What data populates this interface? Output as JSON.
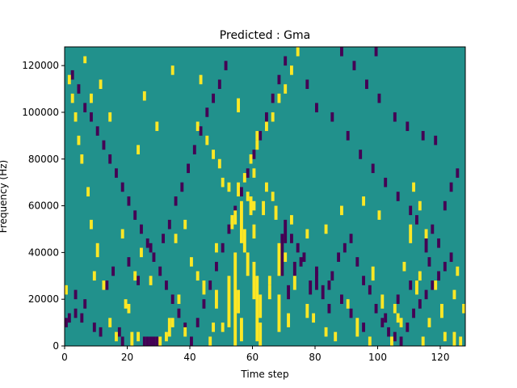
{
  "chart_data": {
    "type": "heatmap",
    "title": "Predicted : Gma",
    "xlabel": "Time step",
    "ylabel": "Frequency (Hz)",
    "xlim": [
      0,
      128
    ],
    "ylim": [
      0,
      128000
    ],
    "x_ticks": [
      0,
      20,
      40,
      60,
      80,
      100,
      120
    ],
    "y_ticks": [
      0,
      20000,
      40000,
      60000,
      80000,
      100000,
      120000
    ],
    "x_tick_labels": [
      "0",
      "20",
      "40",
      "60",
      "80",
      "100",
      "120"
    ],
    "y_tick_labels": [
      "0",
      "20000",
      "40000",
      "60000",
      "80000",
      "100000",
      "120000"
    ],
    "cols": 128,
    "rows": 128,
    "row_height_hz": 1000,
    "colormap": {
      "background": "#21918c",
      "high": "#fde725",
      "low": "#440154"
    },
    "high_cells": [
      [
        6,
        121,
        124
      ],
      [
        8,
        104,
        108
      ],
      [
        11,
        110,
        114
      ],
      [
        14,
        96,
        100
      ],
      [
        23,
        82,
        86
      ],
      [
        25,
        105,
        109
      ],
      [
        29,
        92,
        96
      ],
      [
        34,
        116,
        120
      ],
      [
        35,
        44,
        48
      ],
      [
        43,
        112,
        116
      ],
      [
        55,
        100,
        106
      ],
      [
        60,
        72,
        76
      ],
      [
        61,
        88,
        92
      ],
      [
        56,
        44,
        62
      ],
      [
        54,
        52,
        58
      ],
      [
        58,
        30,
        40
      ],
      [
        62,
        0,
        10
      ],
      [
        64,
        66,
        70
      ],
      [
        65,
        26,
        30
      ],
      [
        68,
        30,
        44
      ],
      [
        70,
        36,
        40
      ],
      [
        73,
        24,
        30
      ],
      [
        77,
        12,
        18
      ],
      [
        83,
        4,
        8
      ],
      [
        90,
        16,
        20
      ],
      [
        93,
        4,
        12
      ],
      [
        95,
        60,
        64
      ],
      [
        98,
        28,
        34
      ],
      [
        101,
        16,
        22
      ],
      [
        104,
        0,
        4
      ],
      [
        106,
        10,
        14
      ],
      [
        108,
        32,
        36
      ],
      [
        110,
        44,
        52
      ],
      [
        111,
        66,
        70
      ],
      [
        113,
        28,
        32
      ],
      [
        118,
        24,
        28
      ],
      [
        121,
        2,
        6
      ],
      [
        124,
        20,
        24
      ],
      [
        125,
        30,
        34
      ],
      [
        127,
        14,
        18
      ],
      [
        53,
        50,
        56
      ],
      [
        57,
        40,
        50
      ],
      [
        59,
        56,
        64
      ],
      [
        60,
        46,
        52
      ],
      [
        52,
        8,
        30
      ],
      [
        54,
        0,
        40
      ],
      [
        55,
        14,
        24
      ],
      [
        56,
        2,
        12
      ],
      [
        60,
        20,
        36
      ],
      [
        61,
        2,
        30
      ],
      [
        62,
        12,
        22
      ],
      [
        65,
        20,
        26
      ],
      [
        68,
        6,
        22
      ],
      [
        71,
        8,
        14
      ],
      [
        48,
        16,
        24
      ],
      [
        48,
        40,
        44
      ],
      [
        47,
        6,
        10
      ],
      [
        44,
        22,
        28
      ],
      [
        42,
        28,
        32
      ],
      [
        40,
        34,
        38
      ],
      [
        38,
        50,
        54
      ],
      [
        36,
        18,
        22
      ],
      [
        34,
        8,
        12
      ],
      [
        32,
        2,
        6
      ],
      [
        30,
        0,
        4
      ],
      [
        27,
        26,
        30
      ],
      [
        24,
        38,
        42
      ],
      [
        22,
        28,
        32
      ],
      [
        20,
        14,
        18
      ],
      [
        18,
        46,
        50
      ],
      [
        16,
        2,
        6
      ],
      [
        14,
        8,
        12
      ],
      [
        12,
        24,
        28
      ],
      [
        10,
        38,
        44
      ],
      [
        9,
        28,
        32
      ],
      [
        8,
        50,
        54
      ],
      [
        7,
        64,
        68
      ],
      [
        5,
        78,
        82
      ],
      [
        4,
        86,
        90
      ],
      [
        3,
        96,
        100
      ],
      [
        2,
        104,
        108
      ],
      [
        1,
        112,
        116
      ],
      [
        0,
        22,
        26
      ],
      [
        19,
        16,
        20
      ],
      [
        21,
        0,
        6
      ],
      [
        23,
        2,
        6
      ],
      [
        33,
        4,
        12
      ],
      [
        38,
        4,
        8
      ],
      [
        46,
        0,
        4
      ],
      [
        50,
        6,
        10
      ],
      [
        79,
        10,
        14
      ],
      [
        86,
        2,
        6
      ],
      [
        97,
        0,
        4
      ],
      [
        105,
        14,
        18
      ],
      [
        107,
        8,
        12
      ],
      [
        112,
        22,
        28
      ],
      [
        114,
        0,
        4
      ],
      [
        116,
        8,
        12
      ],
      [
        120,
        12,
        18
      ],
      [
        124,
        0,
        6
      ],
      [
        126,
        0,
        4
      ],
      [
        115,
        46,
        50
      ],
      [
        113,
        58,
        62
      ],
      [
        100,
        54,
        58
      ],
      [
        88,
        56,
        60
      ],
      [
        83,
        48,
        52
      ],
      [
        77,
        46,
        50
      ],
      [
        72,
        52,
        56
      ],
      [
        67,
        54,
        60
      ],
      [
        66,
        62,
        66
      ],
      [
        63,
        56,
        62
      ],
      [
        60,
        58,
        62
      ],
      [
        58,
        62,
        66
      ],
      [
        55,
        64,
        70
      ],
      [
        52,
        66,
        70
      ],
      [
        50,
        68,
        72
      ],
      [
        49,
        76,
        80
      ],
      [
        47,
        80,
        84
      ],
      [
        45,
        86,
        90
      ],
      [
        42,
        92,
        96
      ],
      [
        57,
        70,
        74
      ],
      [
        59,
        78,
        82
      ],
      [
        61,
        84,
        88
      ],
      [
        64,
        92,
        96
      ],
      [
        66,
        96,
        100
      ],
      [
        68,
        104,
        108
      ],
      [
        70,
        108,
        112
      ],
      [
        72,
        116,
        120
      ],
      [
        74,
        124,
        128
      ]
    ],
    "low_cells": [
      [
        2,
        114,
        118
      ],
      [
        4,
        108,
        112
      ],
      [
        6,
        100,
        104
      ],
      [
        8,
        96,
        100
      ],
      [
        10,
        90,
        94
      ],
      [
        12,
        84,
        88
      ],
      [
        14,
        78,
        82
      ],
      [
        16,
        72,
        76
      ],
      [
        18,
        66,
        70
      ],
      [
        20,
        60,
        64
      ],
      [
        22,
        54,
        58
      ],
      [
        24,
        48,
        52
      ],
      [
        26,
        42,
        46
      ],
      [
        28,
        36,
        40
      ],
      [
        30,
        30,
        34
      ],
      [
        32,
        24,
        28
      ],
      [
        34,
        18,
        22
      ],
      [
        36,
        12,
        16
      ],
      [
        38,
        6,
        10
      ],
      [
        40,
        0,
        4
      ],
      [
        42,
        8,
        12
      ],
      [
        44,
        16,
        20
      ],
      [
        46,
        24,
        28
      ],
      [
        48,
        32,
        36
      ],
      [
        50,
        40,
        44
      ],
      [
        52,
        48,
        52
      ],
      [
        54,
        56,
        60
      ],
      [
        56,
        64,
        68
      ],
      [
        58,
        72,
        76
      ],
      [
        60,
        80,
        84
      ],
      [
        62,
        88,
        92
      ],
      [
        64,
        96,
        100
      ],
      [
        66,
        104,
        108
      ],
      [
        68,
        112,
        116
      ],
      [
        70,
        120,
        124
      ],
      [
        25,
        0,
        4
      ],
      [
        26,
        0,
        4
      ],
      [
        27,
        0,
        4
      ],
      [
        28,
        0,
        4
      ],
      [
        29,
        0,
        4
      ],
      [
        18,
        0,
        4
      ],
      [
        17,
        4,
        8
      ],
      [
        11,
        4,
        8
      ],
      [
        9,
        6,
        10
      ],
      [
        5,
        10,
        14
      ],
      [
        3,
        12,
        16
      ],
      [
        1,
        10,
        14
      ],
      [
        0,
        8,
        12
      ],
      [
        3,
        20,
        24
      ],
      [
        6,
        16,
        20
      ],
      [
        13,
        24,
        28
      ],
      [
        15,
        30,
        34
      ],
      [
        20,
        34,
        38
      ],
      [
        23,
        26,
        30
      ],
      [
        27,
        40,
        44
      ],
      [
        31,
        44,
        48
      ],
      [
        33,
        50,
        54
      ],
      [
        35,
        60,
        64
      ],
      [
        37,
        66,
        70
      ],
      [
        39,
        74,
        78
      ],
      [
        41,
        82,
        86
      ],
      [
        43,
        90,
        94
      ],
      [
        45,
        98,
        102
      ],
      [
        47,
        104,
        108
      ],
      [
        49,
        110,
        114
      ],
      [
        51,
        118,
        122
      ],
      [
        69,
        30,
        48
      ],
      [
        70,
        44,
        54
      ],
      [
        71,
        20,
        26
      ],
      [
        73,
        30,
        36
      ],
      [
        75,
        34,
        38
      ],
      [
        78,
        22,
        28
      ],
      [
        80,
        24,
        32
      ],
      [
        82,
        20,
        26
      ],
      [
        84,
        14,
        18
      ],
      [
        85,
        28,
        32
      ],
      [
        87,
        36,
        40
      ],
      [
        89,
        40,
        44
      ],
      [
        91,
        44,
        48
      ],
      [
        93,
        34,
        38
      ],
      [
        95,
        26,
        30
      ],
      [
        97,
        22,
        26
      ],
      [
        99,
        14,
        18
      ],
      [
        101,
        8,
        12
      ],
      [
        103,
        4,
        8
      ],
      [
        105,
        2,
        6
      ],
      [
        107,
        0,
        4
      ],
      [
        109,
        6,
        10
      ],
      [
        111,
        12,
        16
      ],
      [
        113,
        16,
        20
      ],
      [
        115,
        20,
        24
      ],
      [
        117,
        24,
        28
      ],
      [
        119,
        28,
        32
      ],
      [
        121,
        32,
        36
      ],
      [
        123,
        36,
        40
      ],
      [
        119,
        42,
        46
      ],
      [
        117,
        48,
        52
      ],
      [
        121,
        58,
        62
      ],
      [
        123,
        66,
        70
      ],
      [
        125,
        72,
        76
      ],
      [
        118,
        86,
        90
      ],
      [
        114,
        88,
        92
      ],
      [
        109,
        92,
        96
      ],
      [
        105,
        96,
        100
      ],
      [
        100,
        104,
        108
      ],
      [
        96,
        110,
        114
      ],
      [
        92,
        118,
        122
      ],
      [
        88,
        124,
        128
      ],
      [
        99,
        124,
        128
      ],
      [
        77,
        110,
        114
      ],
      [
        80,
        100,
        104
      ],
      [
        85,
        96,
        100
      ],
      [
        90,
        88,
        92
      ],
      [
        94,
        80,
        84
      ],
      [
        98,
        74,
        78
      ],
      [
        102,
        68,
        72
      ],
      [
        106,
        62,
        66
      ],
      [
        110,
        56,
        60
      ],
      [
        112,
        52,
        56
      ],
      [
        115,
        40,
        46
      ],
      [
        116,
        34,
        38
      ],
      [
        110,
        24,
        28
      ],
      [
        106,
        18,
        22
      ],
      [
        102,
        10,
        14
      ],
      [
        95,
        6,
        10
      ],
      [
        91,
        12,
        16
      ],
      [
        88,
        18,
        22
      ],
      [
        84,
        24,
        28
      ],
      [
        80,
        30,
        34
      ],
      [
        76,
        36,
        40
      ],
      [
        74,
        40,
        44
      ],
      [
        72,
        44,
        48
      ]
    ]
  }
}
